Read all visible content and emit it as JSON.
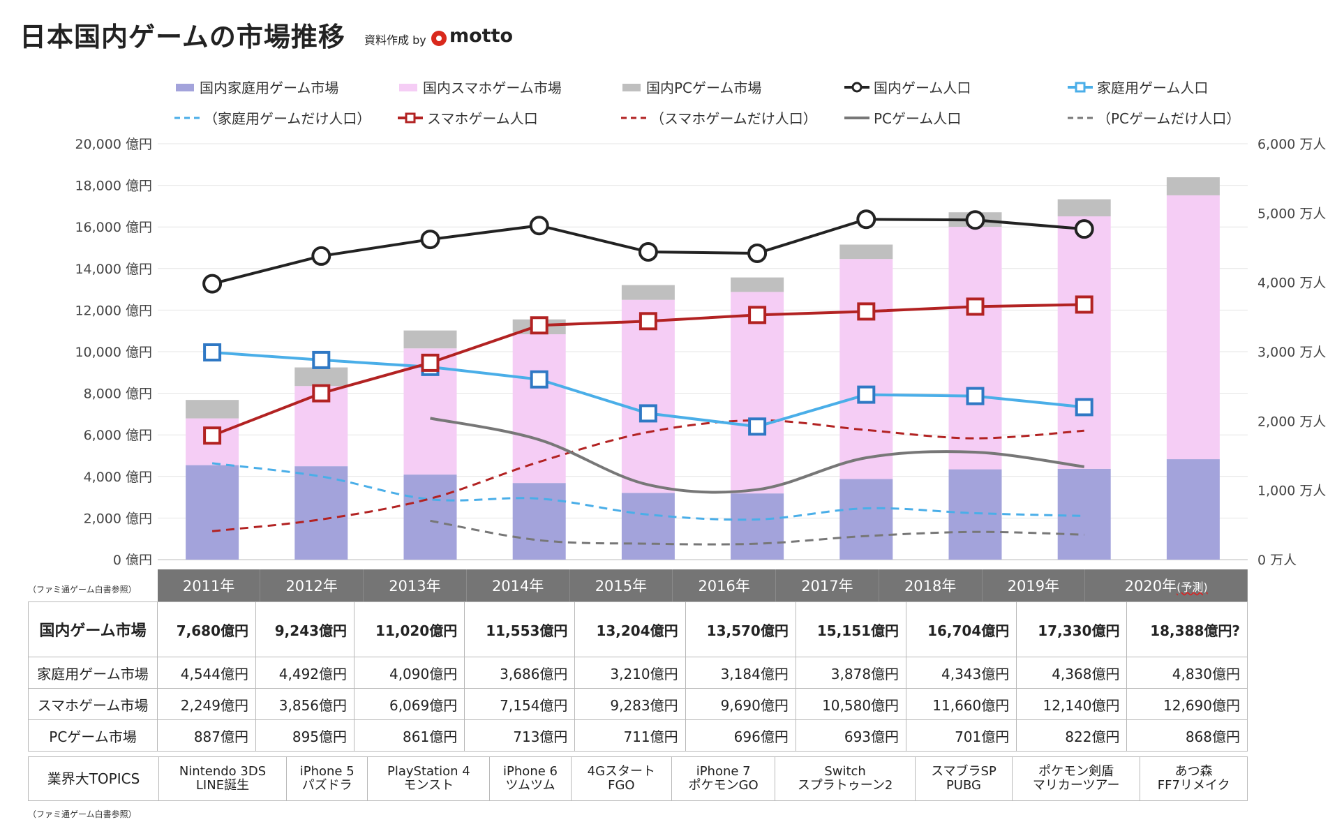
{
  "header": {
    "title": "日本国内ゲームの市場推移",
    "credit": "資料作成 by",
    "brand": "motto"
  },
  "legend": [
    {
      "label": "国内家庭用ゲーム市場",
      "kind": "bar",
      "color": "#a3a3db"
    },
    {
      "label": "国内スマホゲーム市場",
      "kind": "bar",
      "color": "#f5cdf5"
    },
    {
      "label": "国内PCゲーム市場",
      "kind": "bar",
      "color": "#bfbfbf"
    },
    {
      "label": "国内ゲーム人口",
      "kind": "line-circle",
      "color": "#222222"
    },
    {
      "label": "家庭用ゲーム人口",
      "kind": "line-square",
      "color": "#4aaee8"
    },
    {
      "label": "（家庭用ゲームだけ人口）",
      "kind": "dash",
      "color": "#4aaee8"
    },
    {
      "label": "スマホゲーム人口",
      "kind": "line-square",
      "color": "#b22222"
    },
    {
      "label": "（スマホゲームだけ人口）",
      "kind": "dash",
      "color": "#b22222"
    },
    {
      "label": "PCゲーム人口",
      "kind": "line",
      "color": "#777777"
    },
    {
      "label": "（PCゲームだけ人口）",
      "kind": "dash",
      "color": "#777777"
    }
  ],
  "chart_data": {
    "type": "bar",
    "stacked": true,
    "categories": [
      "2011年",
      "2012年",
      "2013年",
      "2014年",
      "2015年",
      "2016年",
      "2017年",
      "2018年",
      "2019年",
      "2020年"
    ],
    "last_category_note": "(予測)",
    "y_left": {
      "unit": "億円",
      "range": [
        0,
        20000
      ],
      "ticks": [
        "20,000 億円",
        "18,000 億円",
        "16,000 億円",
        "14,000 億円",
        "12,000 億円",
        "10,000 億円",
        "8,000 億円",
        "6,000 億円",
        "4,000 億円",
        "2,000 億円",
        "0 億円"
      ]
    },
    "y_right": {
      "unit": "万人",
      "range": [
        0,
        6000
      ],
      "ticks": [
        "6,000 万人",
        "5,000 万人",
        "4,000 万人",
        "3,000 万人",
        "2,000 万人",
        "1,000 万人",
        "0 万人"
      ]
    },
    "bar_series": [
      {
        "name": "国内家庭用ゲーム市場",
        "color": "#a3a3db",
        "values": [
          4544,
          4492,
          4090,
          3686,
          3210,
          3184,
          3878,
          4343,
          4368,
          4830
        ]
      },
      {
        "name": "国内スマホゲーム市場",
        "color": "#f5cdf5",
        "values": [
          2249,
          3856,
          6069,
          7154,
          9283,
          9690,
          10580,
          11660,
          12140,
          12690
        ]
      },
      {
        "name": "国内PCゲーム市場",
        "color": "#bfbfbf",
        "values": [
          887,
          895,
          861,
          713,
          711,
          696,
          693,
          701,
          822,
          868
        ]
      }
    ],
    "line_series": [
      {
        "name": "国内ゲーム人口",
        "color": "#222222",
        "marker": "circle",
        "dash": false,
        "values": [
          3980,
          4380,
          4620,
          4820,
          4440,
          4420,
          4910,
          4900,
          4770,
          null
        ]
      },
      {
        "name": "家庭用ゲーム人口",
        "color": "#4aaee8",
        "marker": "square",
        "dash": false,
        "values": [
          2990,
          2880,
          2780,
          2600,
          2110,
          1920,
          2380,
          2360,
          2200,
          null
        ]
      },
      {
        "name": "スマホゲーム人口",
        "color": "#b22222",
        "marker": "square",
        "dash": false,
        "values": [
          1790,
          2400,
          2840,
          3380,
          3440,
          3530,
          3580,
          3650,
          3680,
          null
        ]
      },
      {
        "name": "PCゲーム人口",
        "color": "#777777",
        "marker": "none",
        "dash": false,
        "values": [
          null,
          null,
          2040,
          1730,
          1080,
          1010,
          1470,
          1550,
          1340,
          null
        ]
      },
      {
        "name": "（家庭用ゲームだけ人口）",
        "color": "#4aaee8",
        "marker": "none",
        "dash": true,
        "values": [
          1390,
          1200,
          870,
          880,
          650,
          580,
          740,
          670,
          630,
          null
        ]
      },
      {
        "name": "（スマホゲームだけ人口）",
        "color": "#b22222",
        "marker": "none",
        "dash": true,
        "values": [
          410,
          580,
          880,
          1410,
          1840,
          2010,
          1870,
          1750,
          1860,
          null
        ]
      },
      {
        "name": "（PCゲームだけ人口）",
        "color": "#777777",
        "marker": "none",
        "dash": true,
        "values": [
          null,
          null,
          560,
          280,
          230,
          230,
          340,
          400,
          360,
          null
        ]
      }
    ]
  },
  "notes": {
    "source_top": "（ファミ通ゲーム白書参照）",
    "source_bottom": "（ファミ通ゲーム白書参照）"
  },
  "table": {
    "years": [
      "2011年",
      "2012年",
      "2013年",
      "2014年",
      "2015年",
      "2016年",
      "2017年",
      "2018年",
      "2019年",
      "2020年"
    ],
    "last_year_note": "(予測)",
    "total": {
      "label": "国内ゲーム市場",
      "values": [
        "7,680億円",
        "9,243億円",
        "11,020億円",
        "11,553億円",
        "13,204億円",
        "13,570億円",
        "15,151億円",
        "16,704億円",
        "17,330億円",
        "18,388億円?"
      ]
    },
    "console": {
      "label": "家庭用ゲーム市場",
      "values": [
        "4,544億円",
        "4,492億円",
        "4,090億円",
        "3,686億円",
        "3,210億円",
        "3,184億円",
        "3,878億円",
        "4,343億円",
        "4,368億円",
        "4,830億円"
      ]
    },
    "mobile": {
      "label": "スマホゲーム市場",
      "values": [
        "2,249億円",
        "3,856億円",
        "6,069億円",
        "7,154億円",
        "9,283億円",
        "9,690億円",
        "10,580億円",
        "11,660億円",
        "12,140億円",
        "12,690億円"
      ]
    },
    "pc": {
      "label": "PCゲーム市場",
      "values": [
        "887億円",
        "895億円",
        "861億円",
        "713億円",
        "711億円",
        "696億円",
        "693億円",
        "701億円",
        "822億円",
        "868億円"
      ]
    },
    "topics": {
      "label": "業界大TOPICS",
      "values": [
        [
          "Nintendo 3DS",
          "LINE誕生"
        ],
        [
          "iPhone 5",
          "パズドラ"
        ],
        [
          "PlayStation 4",
          "モンスト"
        ],
        [
          "iPhone 6",
          "ツムツム"
        ],
        [
          "4Gスタート",
          "FGO"
        ],
        [
          "iPhone 7",
          "ポケモンGO"
        ],
        [
          "Switch",
          "スプラトゥーン2"
        ],
        [
          "スマブラSP",
          "PUBG"
        ],
        [
          "ポケモン剣盾",
          "マリカーツアー"
        ],
        [
          "あつ森",
          "FF7リメイク"
        ]
      ]
    }
  }
}
